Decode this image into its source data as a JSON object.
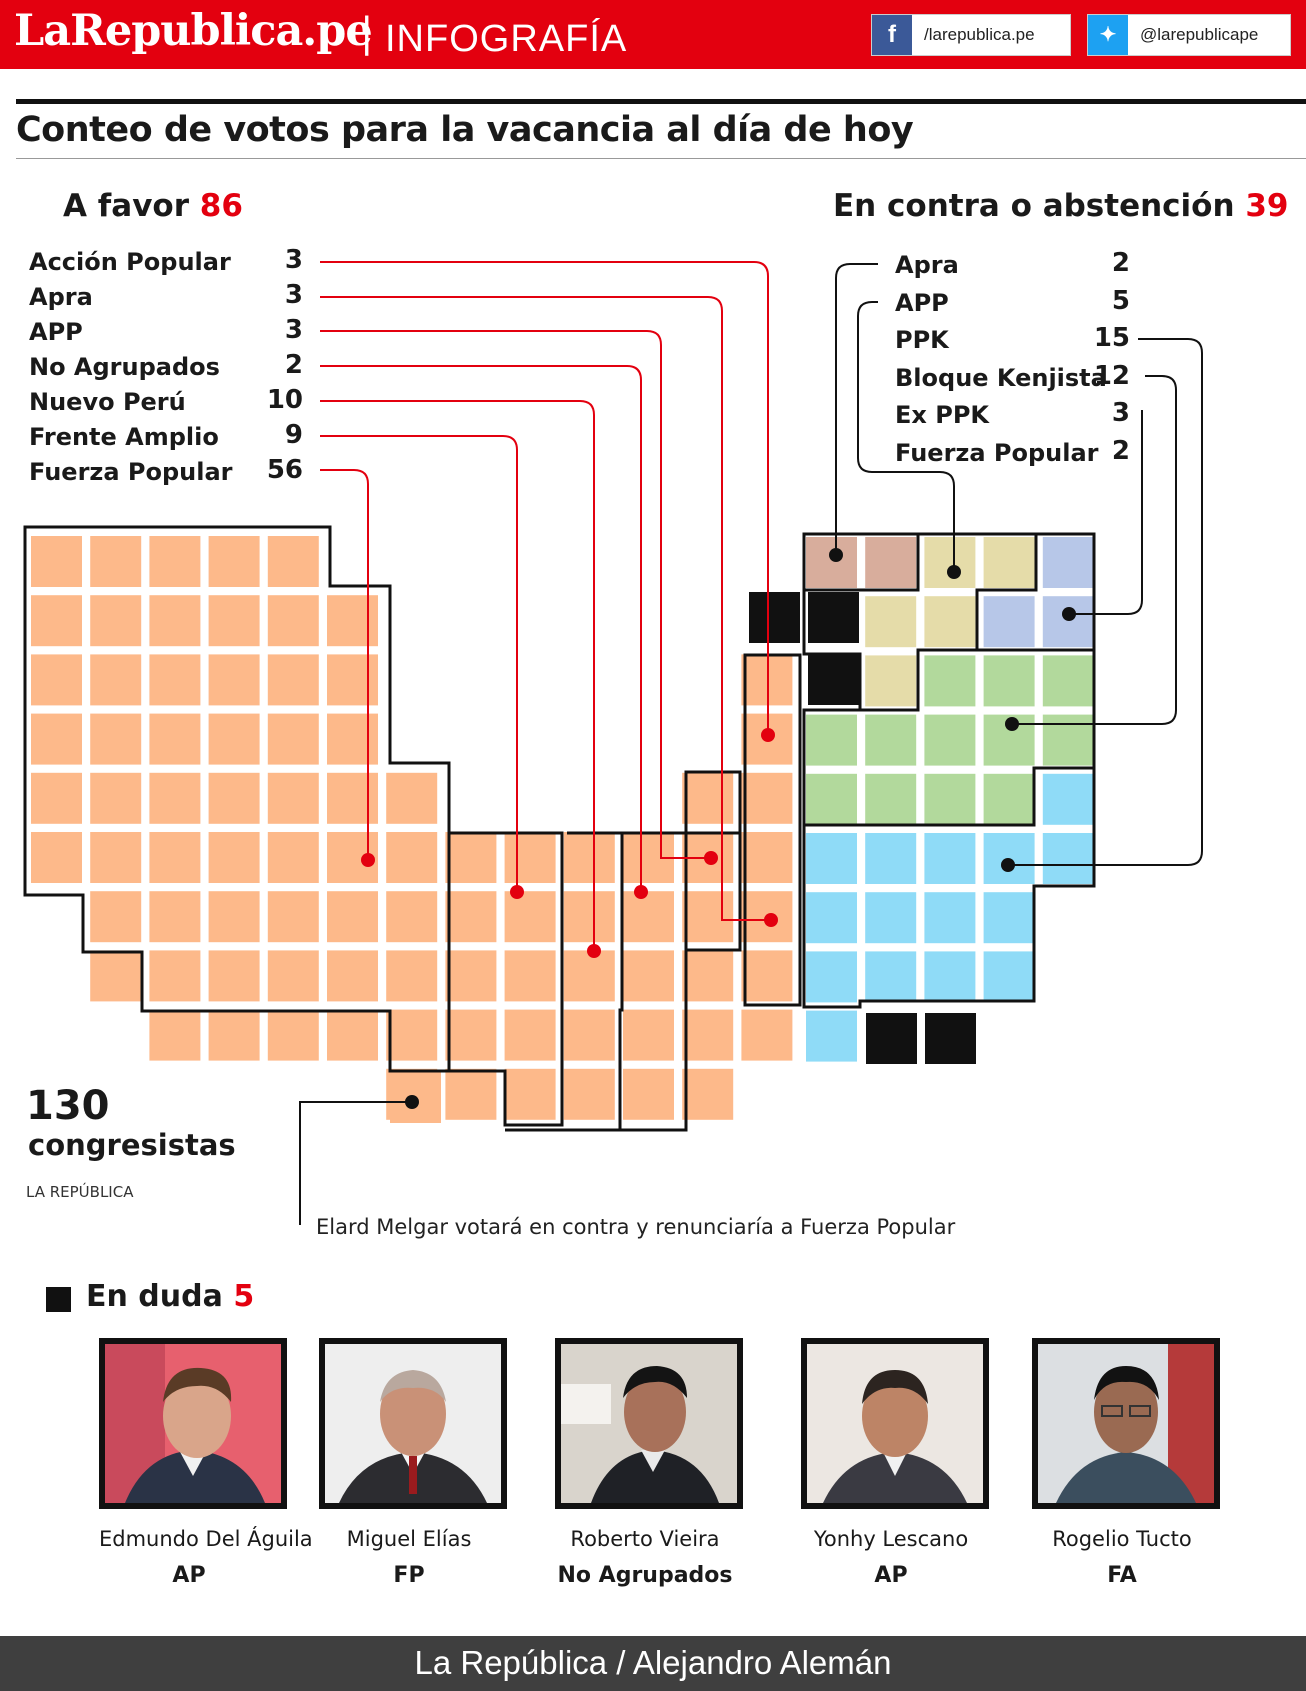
{
  "header": {
    "brand": "LaRepublica.pe",
    "separator": "|",
    "section": "INFOGRAFÍA",
    "facebook": "/larepublica.pe",
    "twitter": "@larepublicape"
  },
  "title": "Conteo de votos para la vacancia al día de hoy",
  "favor": {
    "label": "A favor",
    "total": "86",
    "parties": [
      {
        "name": "Acción Popular",
        "votes": "3"
      },
      {
        "name": "Apra",
        "votes": "3"
      },
      {
        "name": "APP",
        "votes": "3"
      },
      {
        "name": "No Agrupados",
        "votes": "2"
      },
      {
        "name": "Nuevo Perú",
        "votes": "10"
      },
      {
        "name": "Frente Amplio",
        "votes": "9"
      },
      {
        "name": "Fuerza Popular",
        "votes": "56"
      }
    ]
  },
  "contra": {
    "label": "En contra o abstención",
    "total": "39",
    "parties": [
      {
        "name": "Apra",
        "votes": "2"
      },
      {
        "name": "APP",
        "votes": "5"
      },
      {
        "name": "PPK",
        "votes": "15"
      },
      {
        "name": "Bloque Kenjista",
        "votes": "12"
      },
      {
        "name": "Ex PPK",
        "votes": "3"
      },
      {
        "name": "Fuerza Popular",
        "votes": "2"
      }
    ]
  },
  "congress": {
    "number": "130",
    "label": "congresistas",
    "source": "LA REPÚBLICA"
  },
  "note": "Elard Melgar votará en contra y renunciaría a Fuerza Popular",
  "doubt": {
    "label": "En duda",
    "total": "5",
    "people": [
      {
        "name": "Edmundo Del Águila",
        "party": "AP"
      },
      {
        "name": "Miguel Elías",
        "party": "FP"
      },
      {
        "name": "Roberto Vieira",
        "party": "No Agrupados"
      },
      {
        "name": "Yonhy Lescano",
        "party": "AP"
      },
      {
        "name": "Rogelio Tucto",
        "party": "FA"
      }
    ]
  },
  "colors": {
    "favor": "#fdb98a",
    "apra_contra": "#d8ad9c",
    "app_contra": "#e5dca9",
    "ex_ppk": "#b7c7e8",
    "bloque_kenjista": "#b2d99c",
    "ppk": "#8fdbf7",
    "doubt": "#111111",
    "accent": "#e3000f"
  },
  "footer": "La República / Alejandro Alemán"
}
